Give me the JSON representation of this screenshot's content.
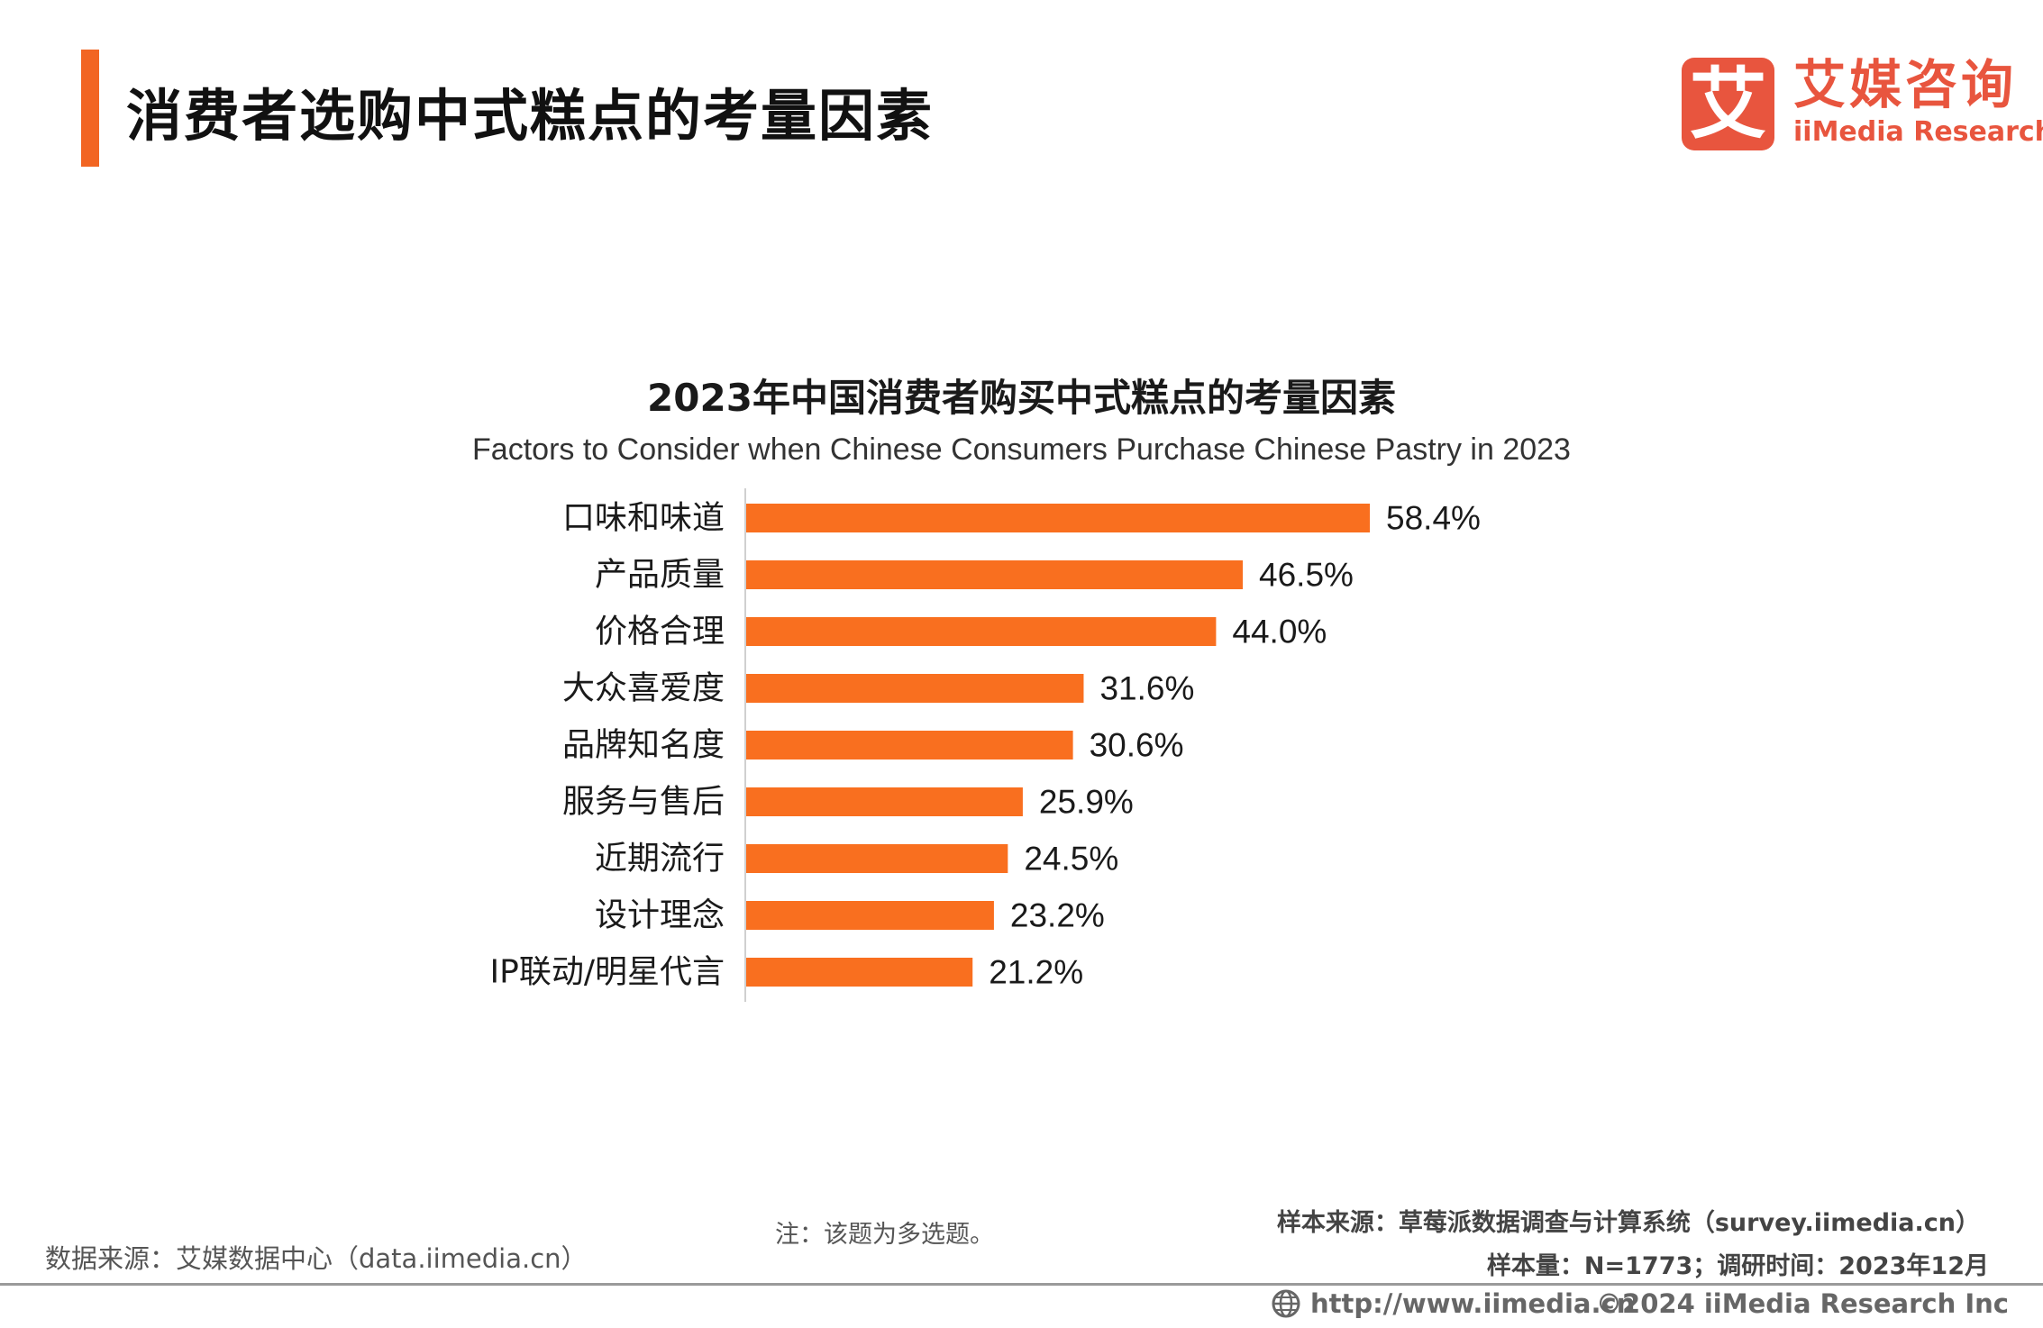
{
  "header": {
    "title": "消费者选购中式糕点的考量因素",
    "accent_color": "#f26522"
  },
  "logo": {
    "mark": "艾",
    "name_cn": "艾媒咨询",
    "name_en": "iiMedia Research",
    "color": "#e8553e"
  },
  "chart_data": {
    "type": "bar",
    "orientation": "horizontal",
    "title": "2023年中国消费者购买中式糕点的考量因素",
    "subtitle": "Factors to Consider when Chinese Consumers Purchase Chinese Pastry in 2023",
    "categories": [
      "口味和味道",
      "产品质量",
      "价格合理",
      "大众喜爱度",
      "品牌知名度",
      "服务与售后",
      "近期流行",
      "设计理念",
      "IP联动/明星代言"
    ],
    "values": [
      58.4,
      46.5,
      44.0,
      31.6,
      30.6,
      25.9,
      24.5,
      23.2,
      21.2
    ],
    "value_labels": [
      "58.4%",
      "46.5%",
      "44.0%",
      "31.6%",
      "30.6%",
      "25.9%",
      "24.5%",
      "23.2%",
      "21.2%"
    ],
    "unit": "%",
    "xlim": [
      0,
      100
    ],
    "bar_color": "#f96f1f",
    "grid": false,
    "legend": "none"
  },
  "footer": {
    "note": "注：该题为多选题。",
    "data_source": "数据来源：艾媒数据中心（data.iimedia.cn）",
    "sample_source": "样本来源：草莓派数据调查与计算系统（survey.iimedia.cn）",
    "sample_size": "样本量：N=1773；调研时间：2023年12月",
    "url": "http://www.iimedia.cn",
    "copyright": "©2024  iiMedia Research  Inc",
    "url_icon": "globe-icon"
  }
}
